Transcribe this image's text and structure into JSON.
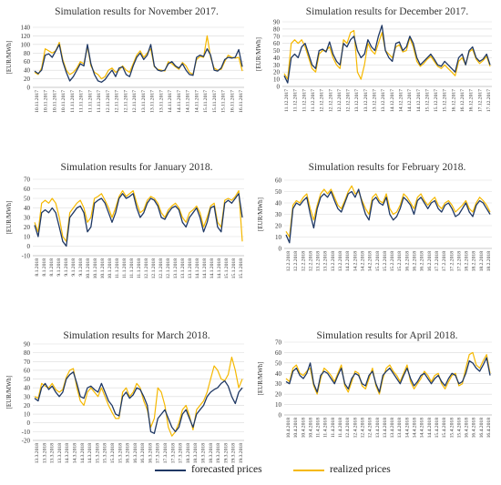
{
  "colors": {
    "forecast": "#1f3864",
    "realized": "#f5b800",
    "grid": "#d9d9d9",
    "axis": "#bfbfbf",
    "text": "#333333"
  },
  "legend": {
    "items": [
      {
        "label": "forecasted prices",
        "color": "#1f3864"
      },
      {
        "label": "realized prices",
        "color": "#f5b800"
      }
    ]
  },
  "chart_data": [
    {
      "type": "line",
      "title": "Simulation results for November 2017.",
      "ylabel": "[EUR/MWh]",
      "ylim": [
        0,
        140
      ],
      "yticks": [
        0,
        20,
        40,
        60,
        80,
        100,
        120,
        140
      ],
      "grid": true,
      "x_tick_labels": [
        "10.11.2017",
        "10.11.2017",
        "10.11.2017",
        "10.11.2017",
        "11.11.2017",
        "11.11.2017",
        "11.11.2017",
        "11.11.2017",
        "12.11.2017",
        "12.11.2017",
        "12.11.2017",
        "12.11.2017",
        "13.11.2017",
        "13.11.2017",
        "13.11.2017",
        "14.11.2017",
        "14.11.2017",
        "14.11.2017",
        "14.11.2017",
        "15.11.2017",
        "15.11.2017",
        "15.11.2017",
        "16.11.2017",
        "16.11.2017"
      ],
      "series": [
        {
          "name": "forecasted prices",
          "values": [
            38,
            32,
            40,
            75,
            78,
            70,
            85,
            100,
            60,
            35,
            15,
            25,
            40,
            55,
            50,
            100,
            55,
            30,
            15,
            12,
            18,
            30,
            40,
            25,
            45,
            48,
            30,
            25,
            50,
            70,
            80,
            65,
            75,
            100,
            50,
            40,
            38,
            40,
            55,
            60,
            50,
            45,
            55,
            40,
            30,
            28,
            70,
            75,
            72,
            90,
            75,
            40,
            38,
            45,
            65,
            70,
            68,
            70,
            88,
            48
          ]
        },
        {
          "name": "realized prices",
          "values": [
            35,
            30,
            45,
            90,
            85,
            80,
            85,
            105,
            65,
            40,
            30,
            35,
            45,
            60,
            55,
            95,
            50,
            35,
            30,
            20,
            25,
            40,
            45,
            35,
            40,
            50,
            40,
            35,
            55,
            75,
            85,
            70,
            80,
            90,
            48,
            42,
            40,
            38,
            60,
            55,
            48,
            42,
            58,
            50,
            35,
            30,
            65,
            72,
            70,
            120,
            70,
            45,
            40,
            42,
            60,
            75,
            70,
            68,
            70,
            38
          ]
        }
      ]
    },
    {
      "type": "line",
      "title": "Simulation results for December 2017.",
      "ylabel": "[EUR/MWh]",
      "ylim": [
        0,
        90
      ],
      "yticks": [
        0,
        10,
        20,
        30,
        40,
        50,
        60,
        70,
        80,
        90
      ],
      "grid": true,
      "x_tick_labels": [
        "11.12.2017",
        "11.12.2017",
        "11.12.2017",
        "11.12.2017",
        "12.12.2017",
        "12.12.2017",
        "12.12.2017",
        "12.12.2017",
        "13.12.2017",
        "13.12.2017",
        "13.12.2017",
        "13.12.2017",
        "14.12.2017",
        "14.12.2017",
        "14.12.2017",
        "14.12.2017",
        "15.12.2017",
        "15.12.2017",
        "15.12.2017",
        "16.12.2017",
        "16.12.2017",
        "16.12.2017",
        "17.12.2017",
        "17.12.2017"
      ],
      "series": [
        {
          "name": "forecasted prices",
          "values": [
            15,
            5,
            40,
            45,
            40,
            55,
            60,
            45,
            30,
            25,
            50,
            52,
            48,
            62,
            45,
            35,
            30,
            60,
            55,
            65,
            70,
            50,
            40,
            45,
            65,
            55,
            50,
            70,
            85,
            50,
            40,
            35,
            60,
            62,
            50,
            55,
            70,
            60,
            40,
            30,
            35,
            40,
            45,
            38,
            30,
            28,
            35,
            30,
            25,
            20,
            40,
            45,
            30,
            50,
            55,
            40,
            35,
            38,
            45,
            30
          ]
        },
        {
          "name": "realized prices",
          "values": [
            18,
            10,
            60,
            65,
            60,
            65,
            55,
            40,
            25,
            20,
            45,
            50,
            50,
            55,
            40,
            30,
            25,
            65,
            60,
            75,
            78,
            20,
            10,
            30,
            60,
            50,
            45,
            60,
            75,
            50,
            45,
            40,
            55,
            58,
            48,
            50,
            68,
            55,
            35,
            28,
            32,
            38,
            42,
            35,
            28,
            25,
            30,
            25,
            20,
            15,
            35,
            40,
            30,
            48,
            52,
            38,
            32,
            36,
            42,
            28
          ]
        }
      ]
    },
    {
      "type": "line",
      "title": "Simulation results for January 2018.",
      "ylabel": "[EUR/MWh]",
      "ylim": [
        -10,
        70
      ],
      "yticks": [
        -10,
        0,
        10,
        20,
        30,
        40,
        50,
        60,
        70
      ],
      "grid": true,
      "x_tick_labels": [
        "8.1.2018",
        "8.1.2018",
        "8.1.2018",
        "9.1.2018",
        "9.1.2018",
        "9.1.2018",
        "9.1.2018",
        "10.1.2018",
        "10.1.2018",
        "10.1.2018",
        "10.1.2018",
        "11.1.2018",
        "11.1.2018",
        "11.1.2018",
        "11.1.2018",
        "12.1.2018",
        "12.1.2018",
        "12.1.2018",
        "12.1.2018",
        "13.1.2018",
        "13.1.2018",
        "13.1.2018",
        "14.1.2018",
        "14.1.2018",
        "14.1.2018",
        "14.1.2018",
        "15.1.2018",
        "15.1.2018",
        "15.1.2018"
      ],
      "series": [
        {
          "name": "forecasted prices",
          "values": [
            22,
            10,
            35,
            38,
            35,
            40,
            35,
            20,
            5,
            0,
            30,
            35,
            40,
            42,
            35,
            15,
            20,
            45,
            48,
            50,
            45,
            35,
            25,
            35,
            50,
            55,
            50,
            52,
            55,
            40,
            30,
            35,
            45,
            50,
            48,
            42,
            30,
            28,
            35,
            40,
            42,
            38,
            25,
            20,
            30,
            35,
            40,
            30,
            15,
            25,
            40,
            42,
            20,
            15,
            45,
            48,
            45,
            50,
            55,
            30
          ]
        },
        {
          "name": "realized prices",
          "values": [
            25,
            15,
            45,
            48,
            45,
            50,
            45,
            30,
            10,
            5,
            35,
            40,
            45,
            48,
            40,
            25,
            30,
            50,
            52,
            55,
            48,
            40,
            30,
            40,
            52,
            58,
            52,
            55,
            58,
            45,
            35,
            38,
            48,
            52,
            50,
            45,
            35,
            30,
            38,
            42,
            45,
            40,
            30,
            25,
            35,
            38,
            42,
            35,
            20,
            30,
            42,
            45,
            25,
            20,
            48,
            50,
            48,
            52,
            58,
            5
          ]
        }
      ]
    },
    {
      "type": "line",
      "title": "Simulation results for February 2018.",
      "ylabel": "[EUR/MWh]",
      "ylim": [
        0,
        60
      ],
      "yticks": [
        0,
        10,
        20,
        30,
        40,
        50,
        60
      ],
      "grid": true,
      "x_tick_labels": [
        "12.2.2018",
        "12.2.2018",
        "12.2.2018",
        "12.2.2018",
        "13.2.2018",
        "13.2.2018",
        "13.2.2018",
        "13.2.2018",
        "14.2.2018",
        "14.2.2018",
        "14.2.2018",
        "14.2.2018",
        "15.2.2018",
        "15.2.2018",
        "15.2.2018",
        "15.2.2018",
        "16.2.2018",
        "16.2.2018",
        "16.2.2018",
        "16.2.2018",
        "17.2.2018",
        "17.2.2018",
        "17.2.2018",
        "17.2.2018",
        "18.2.2018",
        "18.2.2018",
        "18.2.2018",
        "18.2.2018"
      ],
      "series": [
        {
          "name": "forecasted prices",
          "values": [
            12,
            5,
            35,
            40,
            38,
            42,
            45,
            30,
            18,
            35,
            45,
            48,
            45,
            50,
            42,
            35,
            32,
            40,
            48,
            50,
            45,
            52,
            40,
            30,
            25,
            42,
            45,
            40,
            38,
            45,
            30,
            25,
            28,
            35,
            45,
            42,
            38,
            30,
            42,
            45,
            40,
            35,
            40,
            42,
            35,
            32,
            38,
            40,
            35,
            28,
            30,
            35,
            40,
            32,
            28,
            38,
            42,
            40,
            35,
            30
          ]
        },
        {
          "name": "realized prices",
          "values": [
            15,
            10,
            38,
            42,
            40,
            45,
            48,
            35,
            25,
            38,
            48,
            52,
            48,
            52,
            45,
            38,
            35,
            42,
            50,
            55,
            48,
            50,
            42,
            35,
            30,
            45,
            48,
            42,
            40,
            48,
            35,
            30,
            32,
            38,
            48,
            45,
            40,
            35,
            45,
            48,
            42,
            38,
            42,
            45,
            38,
            35,
            40,
            42,
            38,
            32,
            35,
            38,
            42,
            35,
            32,
            40,
            45,
            42,
            38,
            32
          ]
        }
      ]
    },
    {
      "type": "line",
      "title": "Simulation results for March 2018.",
      "ylabel": "[EUR/MWh]",
      "ylim": [
        -20,
        90
      ],
      "yticks": [
        -20,
        -10,
        0,
        10,
        20,
        30,
        40,
        50,
        60,
        70,
        80,
        90
      ],
      "grid": true,
      "x_tick_labels": [
        "13.3.2018",
        "13.3.2018",
        "13.3.2018",
        "13.3.2018",
        "14.3.2018",
        "14.3.2018",
        "14.3.2018",
        "14.3.2018",
        "15.3.2018",
        "15.3.2018",
        "15.3.2018",
        "15.3.2018",
        "16.3.2018",
        "16.3.2018",
        "16.3.2018",
        "16.3.2018",
        "17.3.2018",
        "17.3.2018",
        "17.3.2018",
        "17.3.2018",
        "18.3.2018",
        "18.3.2018",
        "18.3.2018",
        "18.3.2018",
        "19.3.2018",
        "19.3.2018",
        "19.3.2018",
        "19.3.2018"
      ],
      "series": [
        {
          "name": "forecasted prices",
          "values": [
            28,
            25,
            40,
            45,
            38,
            42,
            35,
            30,
            35,
            50,
            55,
            58,
            45,
            30,
            28,
            40,
            42,
            38,
            35,
            45,
            35,
            25,
            20,
            10,
            8,
            30,
            35,
            28,
            32,
            40,
            38,
            30,
            20,
            -10,
            -12,
            5,
            10,
            15,
            5,
            -5,
            -10,
            -5,
            10,
            15,
            5,
            -5,
            10,
            15,
            20,
            30,
            35,
            38,
            40,
            45,
            48,
            42,
            30,
            22,
            35,
            40
          ]
        },
        {
          "name": "realized prices",
          "values": [
            30,
            28,
            45,
            42,
            40,
            45,
            38,
            35,
            38,
            52,
            60,
            62,
            40,
            25,
            20,
            35,
            40,
            35,
            30,
            40,
            30,
            20,
            12,
            5,
            5,
            35,
            40,
            30,
            35,
            45,
            40,
            25,
            15,
            -5,
            5,
            40,
            35,
            20,
            -5,
            -15,
            -10,
            0,
            15,
            20,
            8,
            -8,
            15,
            20,
            25,
            35,
            50,
            65,
            60,
            50,
            48,
            55,
            75,
            60,
            40,
            50
          ]
        }
      ]
    },
    {
      "type": "line",
      "title": "Simulation results for April 2018.",
      "ylabel": "[EUR/MWh]",
      "ylim": [
        0,
        70
      ],
      "yticks": [
        0,
        10,
        20,
        30,
        40,
        50,
        60,
        70
      ],
      "grid": true,
      "x_tick_labels": [
        "10.4.2018",
        "10.4.2018",
        "10.4.2018",
        "10.4.2018",
        "11.4.2018",
        "11.4.2018",
        "11.4.2018",
        "11.4.2018",
        "12.4.2018",
        "12.4.2018",
        "12.4.2018",
        "12.4.2018",
        "13.4.2018",
        "13.4.2018",
        "13.4.2018",
        "13.4.2018",
        "14.4.2018",
        "14.4.2018",
        "14.4.2018",
        "14.4.2018",
        "15.4.2018",
        "15.4.2018",
        "15.4.2018",
        "15.4.2018",
        "16.4.2018",
        "16.4.2018",
        "16.4.2018",
        "16.4.2018"
      ],
      "series": [
        {
          "name": "forecasted prices",
          "values": [
            32,
            30,
            42,
            45,
            38,
            35,
            40,
            50,
            30,
            22,
            38,
            42,
            40,
            35,
            30,
            38,
            45,
            30,
            25,
            35,
            40,
            38,
            30,
            28,
            38,
            42,
            30,
            22,
            38,
            42,
            45,
            40,
            35,
            30,
            38,
            45,
            35,
            28,
            32,
            38,
            40,
            35,
            30,
            35,
            38,
            32,
            28,
            35,
            40,
            38,
            30,
            32,
            40,
            52,
            50,
            45,
            42,
            48,
            55,
            38
          ]
        },
        {
          "name": "realized prices",
          "values": [
            35,
            32,
            45,
            48,
            40,
            38,
            42,
            45,
            28,
            20,
            35,
            45,
            42,
            38,
            32,
            40,
            48,
            28,
            22,
            32,
            42,
            40,
            28,
            25,
            35,
            45,
            28,
            20,
            35,
            45,
            48,
            42,
            38,
            32,
            40,
            48,
            32,
            25,
            30,
            35,
            42,
            38,
            32,
            38,
            40,
            30,
            25,
            32,
            38,
            40,
            28,
            30,
            45,
            58,
            60,
            48,
            45,
            52,
            58,
            40
          ]
        }
      ]
    }
  ]
}
